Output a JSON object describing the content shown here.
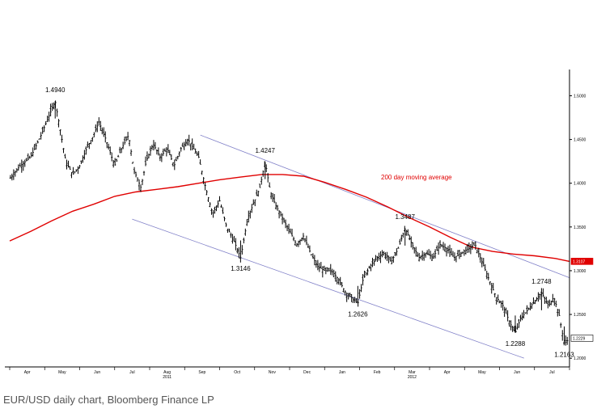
{
  "caption": "EUR/USD daily chart, Bloomberg Finance LP",
  "chart_data": {
    "type": "candlestick",
    "colors": {
      "price": "#000000",
      "ma": "#e00000",
      "channel": "#8080c8",
      "axis": "#000000"
    },
    "ylim": [
      1.19,
      1.53
    ],
    "yticks": [
      {
        "value": 1.5,
        "label": "1.5000"
      },
      {
        "value": 1.45,
        "label": "1.4500"
      },
      {
        "value": 1.4,
        "label": "1.4000"
      },
      {
        "value": 1.35,
        "label": "1.3500"
      },
      {
        "value": 1.3,
        "label": "1.3000"
      },
      {
        "value": 1.25,
        "label": "1.2500"
      },
      {
        "value": 1.2,
        "label": "1.2000"
      }
    ],
    "xdomain": [
      0,
      16.0
    ],
    "months": [
      {
        "label": "Apr",
        "year": ""
      },
      {
        "label": "May",
        "year": ""
      },
      {
        "label": "Jun",
        "year": ""
      },
      {
        "label": "Jul",
        "year": ""
      },
      {
        "label": "Aug",
        "year": "2011"
      },
      {
        "label": "Sep",
        "year": ""
      },
      {
        "label": "Oct",
        "year": ""
      },
      {
        "label": "Nov",
        "year": ""
      },
      {
        "label": "Dec",
        "year": ""
      },
      {
        "label": "Jan",
        "year": ""
      },
      {
        "label": "Feb",
        "year": ""
      },
      {
        "label": "Mar",
        "year": "2012"
      },
      {
        "label": "Apr",
        "year": ""
      },
      {
        "label": "May",
        "year": ""
      },
      {
        "label": "Jun",
        "year": ""
      },
      {
        "label": "Jul",
        "year": ""
      }
    ],
    "price_path": [
      [
        0.0,
        1.405
      ],
      [
        0.3,
        1.42
      ],
      [
        0.6,
        1.43
      ],
      [
        0.9,
        1.455
      ],
      [
        1.1,
        1.475
      ],
      [
        1.3,
        1.494
      ],
      [
        1.45,
        1.46
      ],
      [
        1.6,
        1.425
      ],
      [
        1.8,
        1.41
      ],
      [
        2.0,
        1.42
      ],
      [
        2.2,
        1.44
      ],
      [
        2.4,
        1.455
      ],
      [
        2.55,
        1.47
      ],
      [
        2.75,
        1.45
      ],
      [
        3.0,
        1.42
      ],
      [
        3.2,
        1.44
      ],
      [
        3.4,
        1.455
      ],
      [
        3.55,
        1.415
      ],
      [
        3.75,
        1.395
      ],
      [
        3.9,
        1.425
      ],
      [
        4.1,
        1.445
      ],
      [
        4.3,
        1.43
      ],
      [
        4.5,
        1.44
      ],
      [
        4.7,
        1.42
      ],
      [
        4.9,
        1.44
      ],
      [
        5.1,
        1.45
      ],
      [
        5.25,
        1.44
      ],
      [
        5.4,
        1.43
      ],
      [
        5.6,
        1.395
      ],
      [
        5.8,
        1.365
      ],
      [
        6.0,
        1.38
      ],
      [
        6.2,
        1.35
      ],
      [
        6.4,
        1.335
      ],
      [
        6.6,
        1.3146
      ],
      [
        6.8,
        1.36
      ],
      [
        7.0,
        1.38
      ],
      [
        7.15,
        1.395
      ],
      [
        7.3,
        1.4247
      ],
      [
        7.45,
        1.39
      ],
      [
        7.6,
        1.375
      ],
      [
        7.8,
        1.36
      ],
      [
        8.0,
        1.345
      ],
      [
        8.2,
        1.33
      ],
      [
        8.4,
        1.34
      ],
      [
        8.6,
        1.32
      ],
      [
        8.8,
        1.305
      ],
      [
        9.0,
        1.3
      ],
      [
        9.2,
        1.3
      ],
      [
        9.4,
        1.29
      ],
      [
        9.6,
        1.275
      ],
      [
        9.8,
        1.268
      ],
      [
        9.95,
        1.2626
      ],
      [
        10.1,
        1.29
      ],
      [
        10.3,
        1.305
      ],
      [
        10.5,
        1.315
      ],
      [
        10.7,
        1.32
      ],
      [
        10.9,
        1.31
      ],
      [
        11.1,
        1.325
      ],
      [
        11.3,
        1.3487
      ],
      [
        11.5,
        1.33
      ],
      [
        11.7,
        1.315
      ],
      [
        11.9,
        1.32
      ],
      [
        12.1,
        1.315
      ],
      [
        12.3,
        1.33
      ],
      [
        12.5,
        1.325
      ],
      [
        12.7,
        1.315
      ],
      [
        12.9,
        1.32
      ],
      [
        13.1,
        1.325
      ],
      [
        13.3,
        1.33
      ],
      [
        13.5,
        1.31
      ],
      [
        13.7,
        1.29
      ],
      [
        13.9,
        1.27
      ],
      [
        14.1,
        1.26
      ],
      [
        14.3,
        1.24
      ],
      [
        14.45,
        1.2288
      ],
      [
        14.6,
        1.245
      ],
      [
        14.8,
        1.255
      ],
      [
        15.0,
        1.265
      ],
      [
        15.2,
        1.2748
      ],
      [
        15.4,
        1.26
      ],
      [
        15.55,
        1.27
      ],
      [
        15.7,
        1.25
      ],
      [
        15.85,
        1.2163
      ],
      [
        16.0,
        1.2229
      ]
    ],
    "ma_path": [
      [
        0.0,
        1.334
      ],
      [
        0.6,
        1.345
      ],
      [
        1.2,
        1.357
      ],
      [
        1.8,
        1.368
      ],
      [
        2.4,
        1.376
      ],
      [
        3.0,
        1.385
      ],
      [
        3.6,
        1.39
      ],
      [
        4.2,
        1.393
      ],
      [
        4.8,
        1.396
      ],
      [
        5.4,
        1.4
      ],
      [
        6.0,
        1.404
      ],
      [
        6.6,
        1.407
      ],
      [
        7.2,
        1.41
      ],
      [
        7.8,
        1.41
      ],
      [
        8.4,
        1.408
      ],
      [
        9.0,
        1.401
      ],
      [
        9.6,
        1.393
      ],
      [
        10.2,
        1.384
      ],
      [
        10.8,
        1.373
      ],
      [
        11.4,
        1.361
      ],
      [
        12.0,
        1.35
      ],
      [
        12.6,
        1.338
      ],
      [
        13.2,
        1.327
      ],
      [
        13.8,
        1.322
      ],
      [
        14.4,
        1.319
      ],
      [
        15.0,
        1.317
      ],
      [
        15.6,
        1.314
      ],
      [
        16.0,
        1.3107
      ]
    ],
    "channel_upper": [
      [
        5.45,
        1.455
      ],
      [
        16.0,
        1.292
      ]
    ],
    "channel_lower": [
      [
        3.5,
        1.359
      ],
      [
        14.7,
        1.2
      ]
    ],
    "annotations": [
      {
        "label": "1.4940",
        "x": 1.3,
        "y": 1.494,
        "pos": "above"
      },
      {
        "label": "1.4247",
        "x": 7.3,
        "y": 1.4247,
        "pos": "above"
      },
      {
        "label": "1.3146",
        "x": 6.6,
        "y": 1.3146,
        "pos": "below"
      },
      {
        "label": "1.3487",
        "x": 11.3,
        "y": 1.3487,
        "pos": "above"
      },
      {
        "label": "1.2626",
        "x": 9.95,
        "y": 1.2626,
        "pos": "below"
      },
      {
        "label": "1.2748",
        "x": 15.2,
        "y": 1.2748,
        "pos": "above"
      },
      {
        "label": "1.2288",
        "x": 14.45,
        "y": 1.2288,
        "pos": "below"
      },
      {
        "label": "1.2163",
        "x": 15.85,
        "y": 1.2163,
        "pos": "below"
      }
    ],
    "ma_label": "200 day moving average",
    "last_price": {
      "label": "1.2229",
      "value": 1.2229
    },
    "last_ma": {
      "label": "1.3107",
      "value": 1.3107
    }
  }
}
